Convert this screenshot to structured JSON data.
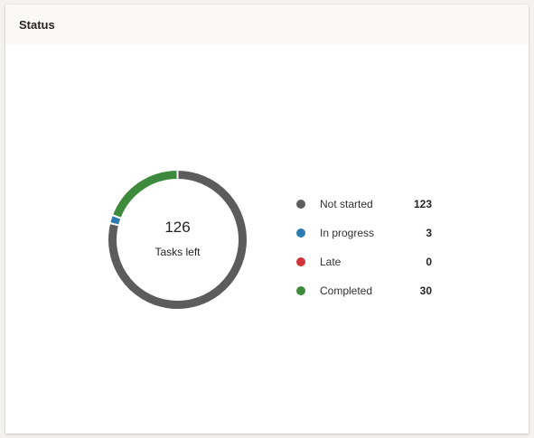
{
  "card": {
    "title": "Status"
  },
  "donut": {
    "value": "126",
    "label": "Tasks left"
  },
  "legend": [
    {
      "key": "not_started",
      "label": "Not started",
      "value": "123",
      "color": "#5c5c5c"
    },
    {
      "key": "in_progress",
      "label": "In progress",
      "value": "3",
      "color": "#2c7bb0"
    },
    {
      "key": "late",
      "label": "Late",
      "value": "0",
      "color": "#d13438"
    },
    {
      "key": "completed",
      "label": "Completed",
      "value": "30",
      "color": "#3d8a3d"
    }
  ],
  "chart_data": {
    "type": "pie",
    "categories": [
      "Not started",
      "In progress",
      "Late",
      "Completed"
    ],
    "values": [
      123,
      3,
      0,
      30
    ],
    "colors": [
      "#5c5c5c",
      "#2c7bb0",
      "#d13438",
      "#3d8a3d"
    ],
    "legend": "right"
  }
}
